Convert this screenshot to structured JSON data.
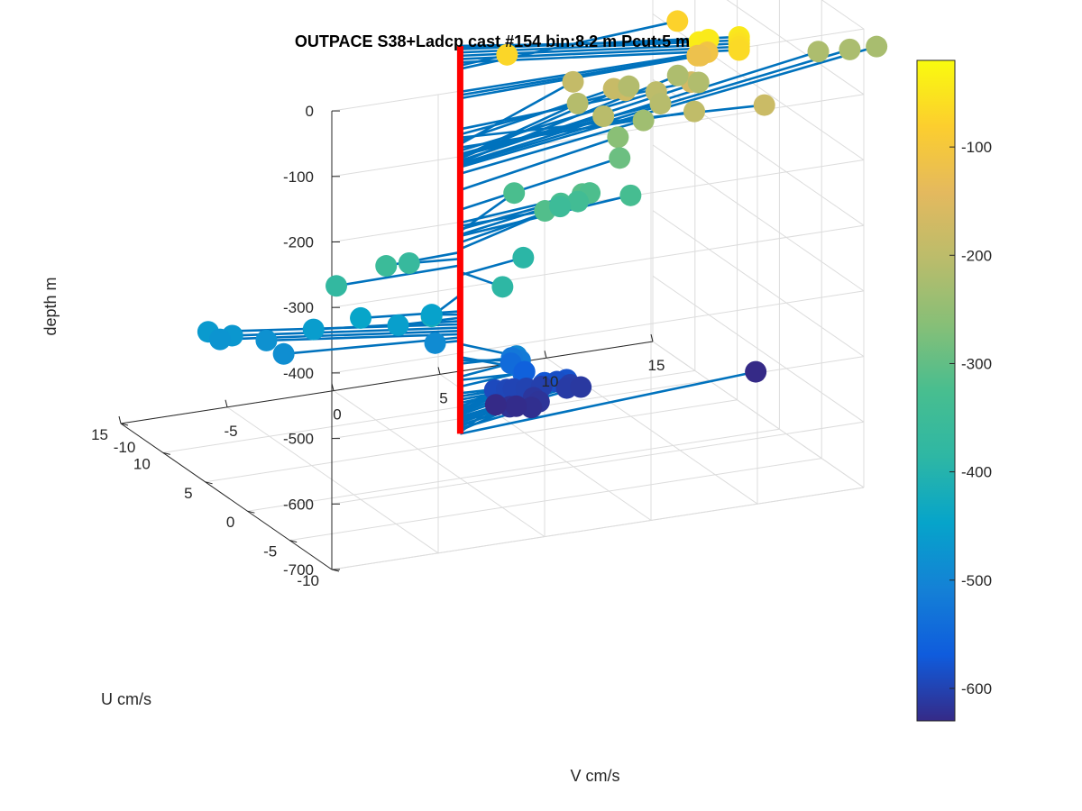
{
  "chart_data": {
    "type": "scatter",
    "title": "OUTPACE S38+Ladcp cast #154 bin:8.2 m  Pcut:5 m",
    "xlabel": "U cm/s",
    "ylabel": "V cm/s",
    "zlabel": "depth m",
    "xlim": [
      -10,
      15
    ],
    "ylim": [
      -10,
      15
    ],
    "zlim": [
      -700,
      0
    ],
    "xticks": [
      "-10",
      "-5",
      "0",
      "5",
      "10",
      "15"
    ],
    "yticks": [
      "-10",
      "-5",
      "0",
      "5",
      "10",
      "15"
    ],
    "zticks": [
      "0",
      "-100",
      "-200",
      "-300",
      "-400",
      "-500",
      "-600",
      "-700"
    ],
    "colorbar": {
      "ticks": [
        "-100",
        "-200",
        "-300",
        "-400",
        "-500",
        "-600"
      ],
      "range": [
        -630,
        -20
      ],
      "colormap": "parula"
    },
    "stick_color": "#0072BD",
    "axis_line_color": "#FF0000",
    "grid": true,
    "legend": "none",
    "points": [
      {
        "u": -4.6,
        "v": 9.4,
        "depth": -40
      },
      {
        "u": -4.2,
        "v": 10.0,
        "depth": -43
      },
      {
        "u": -4.3,
        "v": 11.4,
        "depth": -45
      },
      {
        "u": -4.3,
        "v": 11.4,
        "depth": -50
      },
      {
        "u": -4.3,
        "v": 11.4,
        "depth": -55
      },
      {
        "u": -4.3,
        "v": 11.4,
        "depth": -60
      },
      {
        "u": -4.3,
        "v": 11.4,
        "depth": -65
      },
      {
        "u": 0.5,
        "v": 2.4,
        "depth": -70
      },
      {
        "u": 2.0,
        "v": 11.0,
        "depth": -75
      },
      {
        "u": 0.2,
        "v": 11.7,
        "depth": -110
      },
      {
        "u": 0.4,
        "v": 11.3,
        "depth": -115
      },
      {
        "u": 0.8,
        "v": 11.6,
        "depth": -120
      },
      {
        "u": 1.6,
        "v": 11.5,
        "depth": -167
      },
      {
        "u": 2.6,
        "v": 8.8,
        "depth": -175
      },
      {
        "u": -2.0,
        "v": 13.5,
        "depth": -180
      },
      {
        "u": 4.0,
        "v": 8.8,
        "depth": -185
      },
      {
        "u": 6.3,
        "v": 7.8,
        "depth": -190
      },
      {
        "u": 0.0,
        "v": 11.0,
        "depth": -195
      },
      {
        "u": 4.0,
        "v": 10.8,
        "depth": -200
      },
      {
        "u": 2.2,
        "v": 7.6,
        "depth": -205
      },
      {
        "u": 3.0,
        "v": 10.6,
        "depth": -208
      },
      {
        "u": 5.0,
        "v": 7.5,
        "depth": -210
      },
      {
        "u": 6.5,
        "v": 10.5,
        "depth": -212
      },
      {
        "u": 5.8,
        "v": 13.5,
        "depth": -215
      },
      {
        "u": 7.5,
        "v": 13.2,
        "depth": -218
      },
      {
        "u": 8.0,
        "v": 20.0,
        "depth": -220
      },
      {
        "u": 7.8,
        "v": 21.4,
        "depth": -222
      },
      {
        "u": 7.9,
        "v": 22.7,
        "depth": -225
      },
      {
        "u": 3.5,
        "v": 10.0,
        "depth": -235
      },
      {
        "u": 4.0,
        "v": 9.0,
        "depth": -260
      },
      {
        "u": 3.8,
        "v": 9.0,
        "depth": -290
      },
      {
        "u": 1.4,
        "v": 6.3,
        "depth": -310
      },
      {
        "u": 0.3,
        "v": 4.1,
        "depth": -315
      },
      {
        "u": 2.3,
        "v": 7.0,
        "depth": -320
      },
      {
        "u": 4.2,
        "v": 4.2,
        "depth": -323
      },
      {
        "u": 2.2,
        "v": 5.6,
        "depth": -328
      },
      {
        "u": 2.0,
        "v": 8.8,
        "depth": -330
      },
      {
        "u": 3.2,
        "v": 6.8,
        "depth": -340
      },
      {
        "u": 3.8,
        "v": 6.2,
        "depth": -350
      },
      {
        "u": -0.3,
        "v": -3.6,
        "depth": -355
      },
      {
        "u": 0.5,
        "v": -2.2,
        "depth": -365
      },
      {
        "u": -0.2,
        "v": -5.9,
        "depth": -375
      },
      {
        "u": -3.0,
        "v": 0.8,
        "depth": -385
      },
      {
        "u": 1.1,
        "v": 3.4,
        "depth": -390
      },
      {
        "u": -2.4,
        "v": -2.3,
        "depth": -420
      },
      {
        "u": 1.2,
        "v": -4.2,
        "depth": -445
      },
      {
        "u": 0.6,
        "v": -1.1,
        "depth": -450
      },
      {
        "u": 0.3,
        "v": -2.8,
        "depth": -455
      },
      {
        "u": 2.0,
        "v": -6.1,
        "depth": -460
      },
      {
        "u": 4.4,
        "v": -10.1,
        "depth": -465
      },
      {
        "u": 3.8,
        "v": -9.2,
        "depth": -470
      },
      {
        "u": 4.0,
        "v": -9.7,
        "depth": -475
      },
      {
        "u": 3.3,
        "v": -7.8,
        "depth": -480
      },
      {
        "u": 1.5,
        "v": -7.7,
        "depth": -485
      },
      {
        "u": 0.2,
        "v": -1.1,
        "depth": -490
      },
      {
        "u": -2.9,
        "v": 1.5,
        "depth": -495
      },
      {
        "u": -2.8,
        "v": 1.7,
        "depth": -515
      },
      {
        "u": -1.3,
        "v": 2.3,
        "depth": -520
      },
      {
        "u": -0.3,
        "v": 2.3,
        "depth": -525
      },
      {
        "u": 0.8,
        "v": 2.7,
        "depth": -545
      },
      {
        "u": -0.4,
        "v": 2.8,
        "depth": -550
      },
      {
        "u": 0.7,
        "v": 3.3,
        "depth": -560
      },
      {
        "u": -0.5,
        "v": 3.7,
        "depth": -570
      },
      {
        "u": 0.1,
        "v": 4.0,
        "depth": -575
      },
      {
        "u": 0.5,
        "v": 5.2,
        "depth": -580
      },
      {
        "u": 0.9,
        "v": 4.9,
        "depth": -585
      },
      {
        "u": 1.1,
        "v": 2.3,
        "depth": -590
      },
      {
        "u": 1.7,
        "v": 2.3,
        "depth": -592
      },
      {
        "u": 1.8,
        "v": 2.9,
        "depth": -595
      },
      {
        "u": 2.0,
        "v": 3.3,
        "depth": -598
      },
      {
        "u": 2.0,
        "v": 3.9,
        "depth": -600
      },
      {
        "u": 2.2,
        "v": 4.7,
        "depth": -603
      },
      {
        "u": 2.1,
        "v": 6.0,
        "depth": -606
      },
      {
        "u": 2.0,
        "v": 5.8,
        "depth": -609
      },
      {
        "u": 2.1,
        "v": 6.5,
        "depth": -612
      },
      {
        "u": 1.9,
        "v": 4.2,
        "depth": -615
      },
      {
        "u": 1.5,
        "v": 4.3,
        "depth": -618
      },
      {
        "u": 1.7,
        "v": 3.0,
        "depth": -621
      },
      {
        "u": 1.4,
        "v": 3.9,
        "depth": -624
      },
      {
        "u": 2.2,
        "v": 3.5,
        "depth": -627
      },
      {
        "u": 3.1,
        "v": 2.9,
        "depth": -630
      },
      {
        "u": 2.3,
        "v": 14.8,
        "depth": -632
      }
    ]
  }
}
